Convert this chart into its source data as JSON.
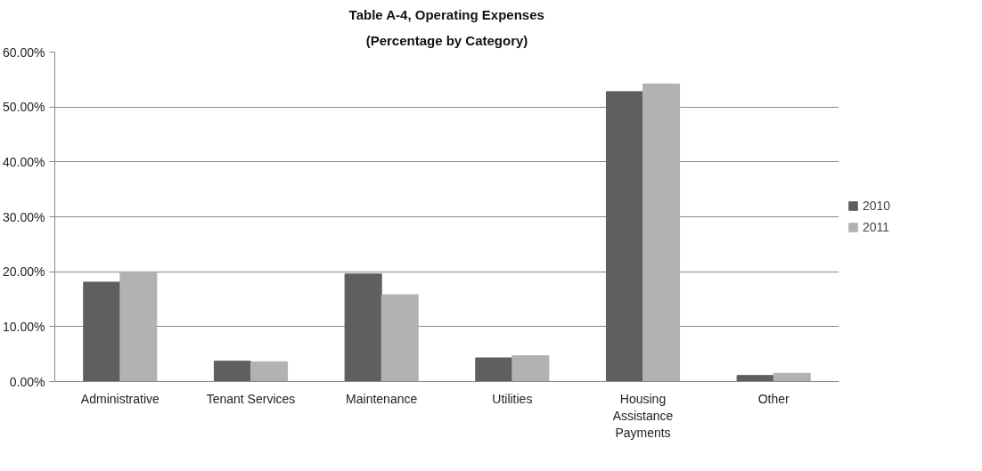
{
  "chart_data": {
    "type": "bar",
    "title": "Table A-4, Operating Expenses",
    "subtitle": "(Percentage by Category)",
    "categories": [
      "Administrative",
      "Tenant Services",
      "Maintenance",
      "Utilities",
      "Housing Assistance Payments",
      "Other"
    ],
    "series": [
      {
        "name": "2010",
        "color": "#5f5f5f",
        "values": [
          18.1,
          3.7,
          19.6,
          4.3,
          52.8,
          1.1
        ]
      },
      {
        "name": "2011",
        "color": "#b2b2b2",
        "values": [
          20.0,
          3.6,
          15.8,
          4.7,
          54.2,
          1.5
        ]
      }
    ],
    "ylim": [
      0,
      60
    ],
    "yticks": [
      {
        "value": 0,
        "label": "0.00%"
      },
      {
        "value": 10,
        "label": "10.00%"
      },
      {
        "value": 20,
        "label": "20.00%"
      },
      {
        "value": 30,
        "label": "30.00%"
      },
      {
        "value": 40,
        "label": "40.00%"
      },
      {
        "value": 50,
        "label": "50.00%"
      },
      {
        "value": 60,
        "label": "60.00%"
      }
    ],
    "grid": "y",
    "legend": "right"
  }
}
